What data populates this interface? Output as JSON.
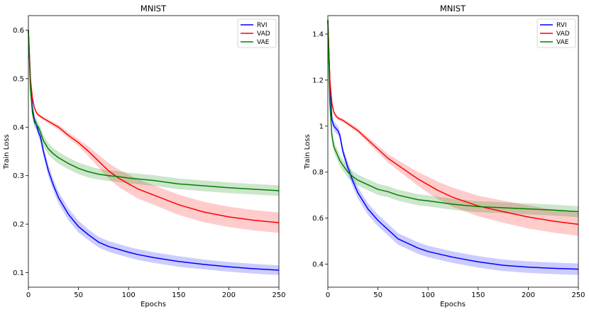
{
  "chart_data": [
    {
      "type": "line",
      "title": "MNIST",
      "xlabel": "Epochs",
      "ylabel": "Train Loss",
      "xlim": [
        0,
        250
      ],
      "ylim": [
        0.07,
        0.63
      ],
      "xticks": [
        0,
        50,
        100,
        150,
        200,
        250
      ],
      "yticks": [
        0.1,
        0.2,
        0.3,
        0.4,
        0.5,
        0.6
      ],
      "legend_position": "top-right",
      "grid": false,
      "series": [
        {
          "name": "RVI",
          "color": "#0000ff",
          "points": [
            [
              0,
              0.6
            ],
            [
              2,
              0.5
            ],
            [
              4,
              0.44
            ],
            [
              6,
              0.415
            ],
            [
              8,
              0.405
            ],
            [
              10,
              0.39
            ],
            [
              12,
              0.38
            ],
            [
              15,
              0.35
            ],
            [
              20,
              0.31
            ],
            [
              25,
              0.28
            ],
            [
              30,
              0.255
            ],
            [
              40,
              0.22
            ],
            [
              50,
              0.195
            ],
            [
              60,
              0.178
            ],
            [
              70,
              0.163
            ],
            [
              80,
              0.154
            ],
            [
              90,
              0.148
            ],
            [
              100,
              0.142
            ],
            [
              110,
              0.137
            ],
            [
              125,
              0.131
            ],
            [
              150,
              0.123
            ],
            [
              175,
              0.117
            ],
            [
              200,
              0.112
            ],
            [
              225,
              0.108
            ],
            [
              250,
              0.105
            ]
          ],
          "band": [
            0.005,
            0.009,
            0.009,
            0.01,
            0.01,
            0.01,
            0.01,
            0.011,
            0.012,
            0.012,
            0.012,
            0.012,
            0.012,
            0.011,
            0.011,
            0.011,
            0.011,
            0.011,
            0.011,
            0.011,
            0.011,
            0.01,
            0.01,
            0.01,
            0.01
          ]
        },
        {
          "name": "VAD",
          "color": "#ff0000",
          "points": [
            [
              0,
              0.6
            ],
            [
              2,
              0.5
            ],
            [
              4,
              0.46
            ],
            [
              6,
              0.44
            ],
            [
              8,
              0.43
            ],
            [
              10,
              0.425
            ],
            [
              15,
              0.418
            ],
            [
              20,
              0.412
            ],
            [
              30,
              0.4
            ],
            [
              40,
              0.383
            ],
            [
              50,
              0.368
            ],
            [
              60,
              0.35
            ],
            [
              70,
              0.33
            ],
            [
              80,
              0.31
            ],
            [
              90,
              0.295
            ],
            [
              100,
              0.283
            ],
            [
              110,
              0.272
            ],
            [
              125,
              0.26
            ],
            [
              150,
              0.24
            ],
            [
              175,
              0.225
            ],
            [
              200,
              0.215
            ],
            [
              225,
              0.208
            ],
            [
              250,
              0.203
            ]
          ],
          "band": [
            0.002,
            0.003,
            0.003,
            0.003,
            0.003,
            0.003,
            0.003,
            0.004,
            0.005,
            0.006,
            0.007,
            0.01,
            0.013,
            0.016,
            0.018,
            0.019,
            0.02,
            0.02,
            0.021,
            0.021,
            0.021,
            0.021,
            0.021
          ]
        },
        {
          "name": "VAE",
          "color": "#008000",
          "points": [
            [
              0,
              0.6
            ],
            [
              2,
              0.48
            ],
            [
              4,
              0.43
            ],
            [
              6,
              0.41
            ],
            [
              8,
              0.405
            ],
            [
              10,
              0.4
            ],
            [
              12,
              0.39
            ],
            [
              15,
              0.372
            ],
            [
              20,
              0.355
            ],
            [
              25,
              0.345
            ],
            [
              30,
              0.337
            ],
            [
              40,
              0.325
            ],
            [
              50,
              0.315
            ],
            [
              60,
              0.308
            ],
            [
              70,
              0.303
            ],
            [
              80,
              0.3
            ],
            [
              90,
              0.298
            ],
            [
              100,
              0.295
            ],
            [
              125,
              0.29
            ],
            [
              150,
              0.283
            ],
            [
              175,
              0.279
            ],
            [
              200,
              0.275
            ],
            [
              225,
              0.272
            ],
            [
              250,
              0.269
            ]
          ],
          "band": [
            0.003,
            0.005,
            0.008,
            0.009,
            0.01,
            0.01,
            0.011,
            0.012,
            0.012,
            0.012,
            0.012,
            0.012,
            0.012,
            0.012,
            0.011,
            0.011,
            0.011,
            0.011,
            0.011,
            0.011,
            0.011,
            0.011,
            0.011,
            0.011
          ]
        }
      ]
    },
    {
      "type": "line",
      "title": "MNIST",
      "xlabel": "Epochs",
      "ylabel": "Train Loss",
      "xlim": [
        0,
        250
      ],
      "ylim": [
        0.3,
        1.48
      ],
      "xticks": [
        0,
        50,
        100,
        150,
        200,
        250
      ],
      "yticks": [
        0.4,
        0.6,
        0.8,
        1.0,
        1.2,
        1.4
      ],
      "legend_position": "top-right",
      "grid": false,
      "series": [
        {
          "name": "RVI",
          "color": "#0000ff",
          "points": [
            [
              0,
              1.46
            ],
            [
              2,
              1.2
            ],
            [
              4,
              1.03
            ],
            [
              6,
              1.0
            ],
            [
              8,
              0.99
            ],
            [
              10,
              0.98
            ],
            [
              12,
              0.96
            ],
            [
              15,
              0.89
            ],
            [
              20,
              0.82
            ],
            [
              25,
              0.76
            ],
            [
              30,
              0.71
            ],
            [
              40,
              0.64
            ],
            [
              50,
              0.59
            ],
            [
              60,
              0.55
            ],
            [
              70,
              0.51
            ],
            [
              80,
              0.49
            ],
            [
              90,
              0.47
            ],
            [
              100,
              0.455
            ],
            [
              110,
              0.445
            ],
            [
              125,
              0.43
            ],
            [
              150,
              0.41
            ],
            [
              175,
              0.395
            ],
            [
              200,
              0.387
            ],
            [
              225,
              0.382
            ],
            [
              250,
              0.378
            ]
          ],
          "band": [
            0.01,
            0.02,
            0.02,
            0.02,
            0.02,
            0.02,
            0.02,
            0.02,
            0.025,
            0.025,
            0.025,
            0.025,
            0.025,
            0.025,
            0.025,
            0.025,
            0.025,
            0.025,
            0.025,
            0.025,
            0.025,
            0.025,
            0.025,
            0.025,
            0.025
          ]
        },
        {
          "name": "VAD",
          "color": "#ff0000",
          "points": [
            [
              0,
              1.46
            ],
            [
              2,
              1.2
            ],
            [
              4,
              1.1
            ],
            [
              6,
              1.06
            ],
            [
              8,
              1.045
            ],
            [
              10,
              1.035
            ],
            [
              15,
              1.025
            ],
            [
              20,
              1.01
            ],
            [
              30,
              0.98
            ],
            [
              40,
              0.94
            ],
            [
              50,
              0.9
            ],
            [
              60,
              0.86
            ],
            [
              70,
              0.83
            ],
            [
              80,
              0.8
            ],
            [
              90,
              0.77
            ],
            [
              100,
              0.745
            ],
            [
              110,
              0.72
            ],
            [
              125,
              0.69
            ],
            [
              150,
              0.653
            ],
            [
              175,
              0.628
            ],
            [
              200,
              0.605
            ],
            [
              225,
              0.587
            ],
            [
              250,
              0.573
            ]
          ],
          "band": [
            0.005,
            0.008,
            0.008,
            0.008,
            0.008,
            0.008,
            0.008,
            0.009,
            0.01,
            0.012,
            0.015,
            0.018,
            0.022,
            0.026,
            0.03,
            0.035,
            0.038,
            0.042,
            0.045,
            0.048,
            0.05,
            0.05,
            0.05
          ]
        },
        {
          "name": "VAE",
          "color": "#008000",
          "points": [
            [
              0,
              1.46
            ],
            [
              2,
              1.1
            ],
            [
              4,
              0.96
            ],
            [
              6,
              0.91
            ],
            [
              8,
              0.89
            ],
            [
              10,
              0.87
            ],
            [
              12,
              0.85
            ],
            [
              15,
              0.83
            ],
            [
              20,
              0.8
            ],
            [
              25,
              0.78
            ],
            [
              30,
              0.765
            ],
            [
              40,
              0.745
            ],
            [
              50,
              0.725
            ],
            [
              60,
              0.715
            ],
            [
              70,
              0.7
            ],
            [
              80,
              0.69
            ],
            [
              90,
              0.68
            ],
            [
              100,
              0.675
            ],
            [
              125,
              0.66
            ],
            [
              150,
              0.65
            ],
            [
              175,
              0.645
            ],
            [
              200,
              0.64
            ],
            [
              225,
              0.635
            ],
            [
              250,
              0.628
            ]
          ],
          "band": [
            0.005,
            0.02,
            0.022,
            0.024,
            0.024,
            0.024,
            0.024,
            0.024,
            0.024,
            0.024,
            0.024,
            0.024,
            0.024,
            0.024,
            0.024,
            0.024,
            0.024,
            0.024,
            0.024,
            0.024,
            0.024,
            0.024,
            0.024,
            0.024
          ]
        }
      ]
    }
  ]
}
